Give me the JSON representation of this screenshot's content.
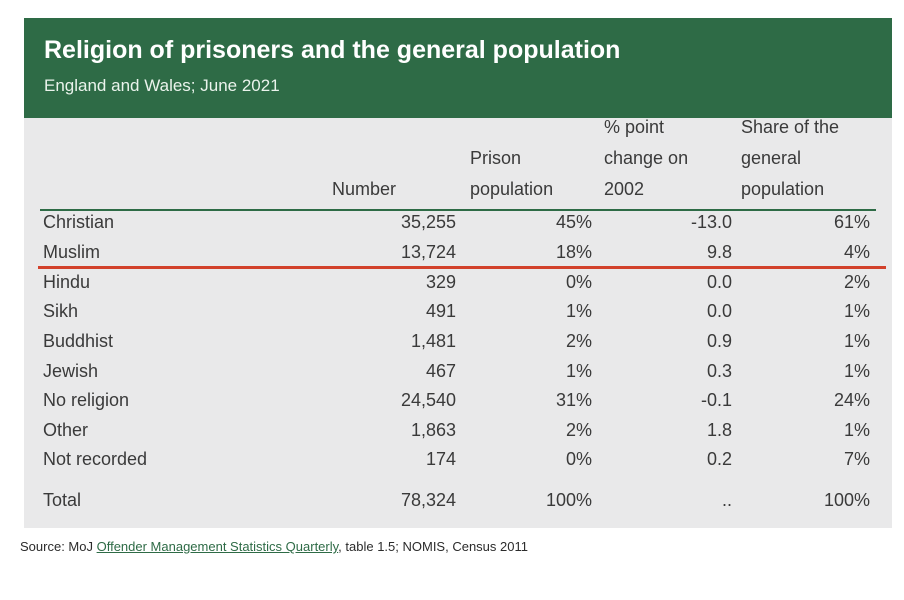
{
  "chart_data": {
    "type": "table",
    "title": "Religion of prisoners and the general population",
    "subtitle": "England and Wales; June 2021",
    "columns": [
      {
        "lines": [
          "Number"
        ]
      },
      {
        "lines": [
          "Prison",
          "population"
        ]
      },
      {
        "lines": [
          "% point",
          "change on",
          "2002"
        ]
      },
      {
        "lines": [
          "Share of the",
          "general",
          "population"
        ]
      }
    ],
    "rows": [
      {
        "label": "Christian",
        "number": "35,255",
        "prison_pct": "45%",
        "change": "-13.0",
        "share": "61%"
      },
      {
        "label": "Muslim",
        "number": "13,724",
        "prison_pct": "18%",
        "change": "9.8",
        "share": "4%"
      },
      {
        "label": "Hindu",
        "number": "329",
        "prison_pct": "0%",
        "change": "0.0",
        "share": "2%"
      },
      {
        "label": "Sikh",
        "number": "491",
        "prison_pct": "1%",
        "change": "0.0",
        "share": "1%"
      },
      {
        "label": "Buddhist",
        "number": "1,481",
        "prison_pct": "2%",
        "change": "0.9",
        "share": "1%"
      },
      {
        "label": "Jewish",
        "number": "467",
        "prison_pct": "1%",
        "change": "0.3",
        "share": "1%"
      },
      {
        "label": "No religion",
        "number": "24,540",
        "prison_pct": "31%",
        "change": "-0.1",
        "share": "24%"
      },
      {
        "label": "Other",
        "number": "1,863",
        "prison_pct": "2%",
        "change": "1.8",
        "share": "1%"
      },
      {
        "label": "Not recorded",
        "number": "174",
        "prison_pct": "0%",
        "change": "0.2",
        "share": "7%"
      }
    ],
    "total": {
      "label": "Total",
      "number": "78,324",
      "prison_pct": "100%",
      "change": "..",
      "share": "100%"
    }
  },
  "source": {
    "prefix": "Source:  MoJ ",
    "link_text": "Offender Management Statistics Quarterly",
    "suffix": ", table 1.5; NOMIS, Census 2011"
  },
  "colors": {
    "header_green": "#2e6b46",
    "highlight_line": "#d2412b",
    "table_bg": "#e9e9ea"
  }
}
